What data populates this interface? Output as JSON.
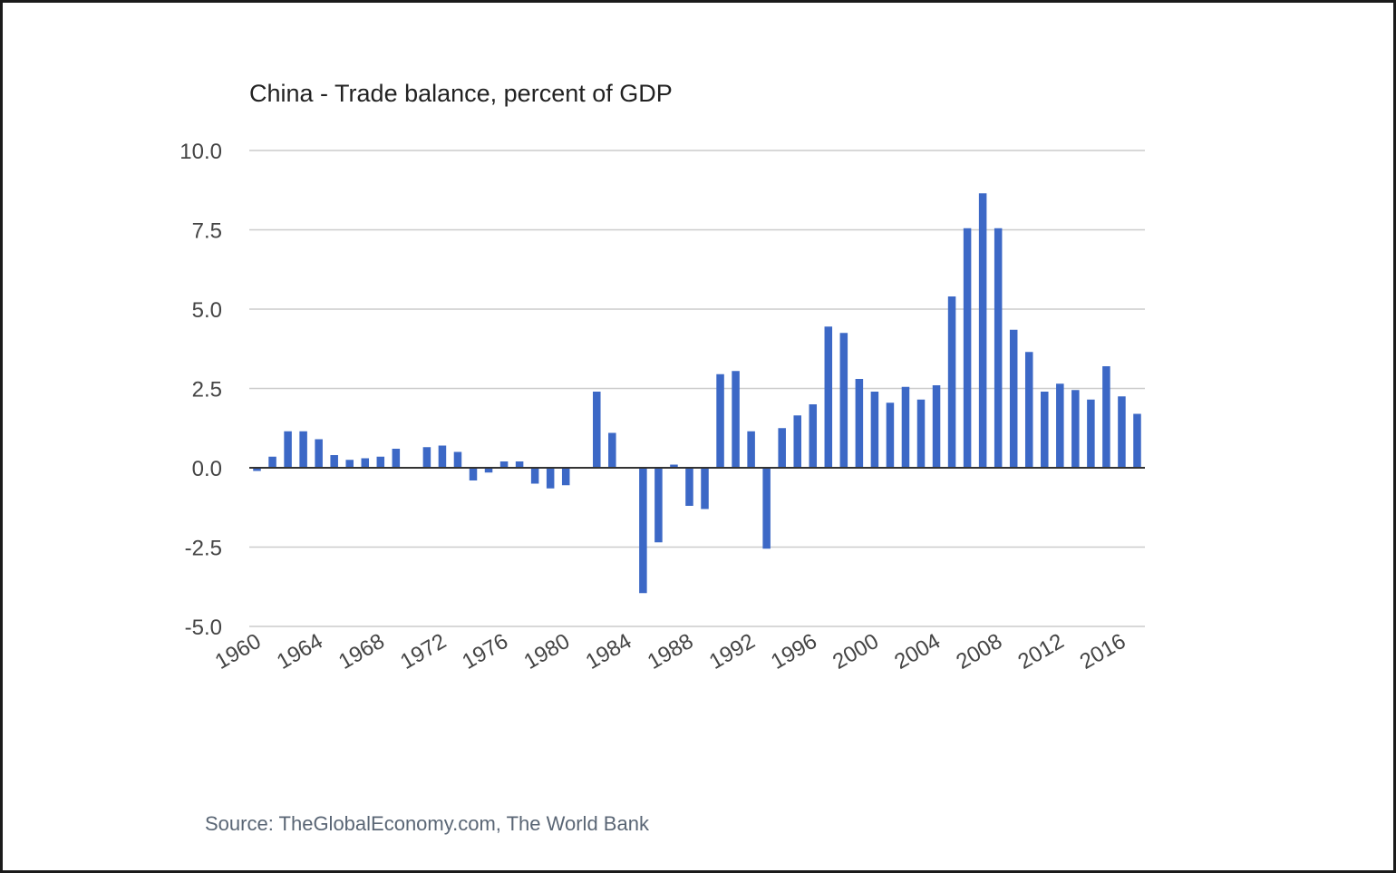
{
  "chart_data": {
    "type": "bar",
    "title": "China - Trade balance, percent of GDP",
    "source": "Source: TheGlobalEconomy.com, The World Bank",
    "xlabel": "",
    "ylabel": "",
    "ylim": [
      -5.0,
      10.0
    ],
    "yticks": [
      "10.0",
      "7.5",
      "5.0",
      "2.5",
      "0.0",
      "-2.5",
      "-5.0"
    ],
    "xticks": [
      "1960",
      "1964",
      "1968",
      "1972",
      "1976",
      "1980",
      "1984",
      "1988",
      "1992",
      "1996",
      "2000",
      "2004",
      "2008",
      "2012",
      "2016"
    ],
    "grid": true,
    "bar_color": "#3c68c6",
    "categories": [
      1960,
      1961,
      1962,
      1963,
      1964,
      1965,
      1966,
      1967,
      1968,
      1969,
      1970,
      1971,
      1972,
      1973,
      1974,
      1975,
      1976,
      1977,
      1978,
      1979,
      1980,
      1981,
      1982,
      1983,
      1984,
      1985,
      1986,
      1987,
      1988,
      1989,
      1990,
      1991,
      1992,
      1993,
      1994,
      1995,
      1996,
      1997,
      1998,
      1999,
      2000,
      2001,
      2002,
      2003,
      2004,
      2005,
      2006,
      2007,
      2008,
      2009,
      2010,
      2011,
      2012,
      2013,
      2014,
      2015,
      2016,
      2017
    ],
    "values": [
      -0.1,
      0.35,
      1.15,
      1.15,
      0.9,
      0.4,
      0.25,
      0.3,
      0.35,
      0.6,
      0.0,
      0.65,
      0.7,
      0.5,
      -0.4,
      -0.15,
      0.2,
      0.2,
      -0.5,
      -0.65,
      -0.55,
      0.0,
      2.4,
      1.1,
      0.0,
      -3.95,
      -2.35,
      0.1,
      -1.2,
      -1.3,
      2.95,
      3.05,
      1.15,
      -2.55,
      1.25,
      1.65,
      2.0,
      4.45,
      4.25,
      2.8,
      2.4,
      2.05,
      2.55,
      2.15,
      2.6,
      5.4,
      7.55,
      8.65,
      7.55,
      4.35,
      3.65,
      2.4,
      2.65,
      2.45,
      2.15,
      3.2,
      2.25,
      1.7
    ]
  }
}
